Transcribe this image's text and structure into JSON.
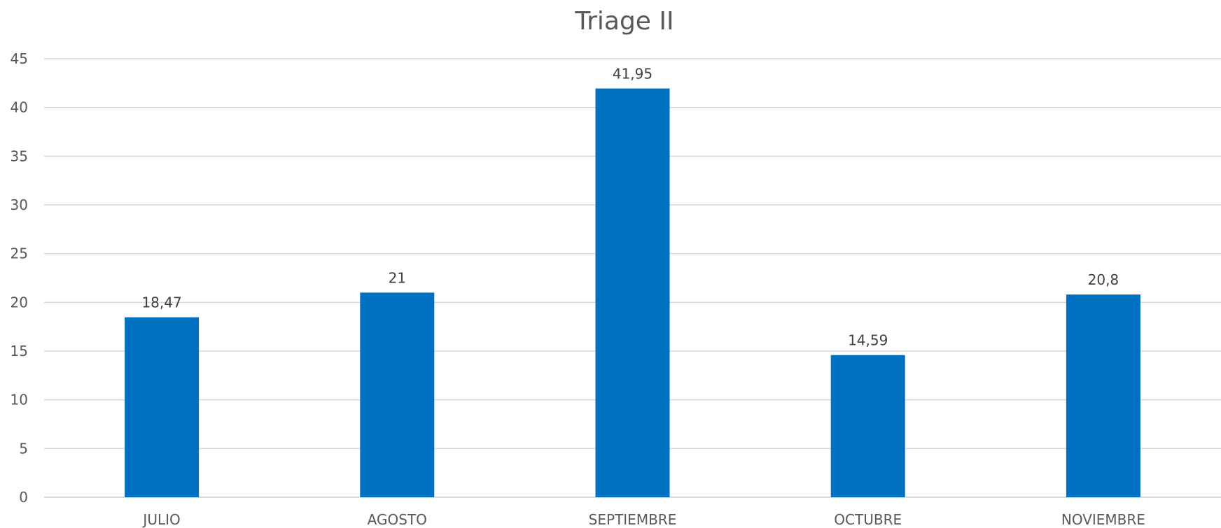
{
  "chart_data": {
    "type": "bar",
    "title": "Triage II",
    "xlabel": "",
    "ylabel": "",
    "categories": [
      "JULIO",
      "AGOSTO",
      "SEPTIEMBRE",
      "OCTUBRE",
      "NOVIEMBRE"
    ],
    "values": [
      18.47,
      21,
      41.95,
      14.59,
      20.8
    ],
    "data_labels": [
      "18,47",
      "21",
      "41,95",
      "14,59",
      "20,8"
    ],
    "ylim": [
      0,
      45
    ],
    "yticks": [
      0,
      5,
      10,
      15,
      20,
      25,
      30,
      35,
      40,
      45
    ],
    "grid": true,
    "legend": "none",
    "bar_color": "#0070C0"
  }
}
